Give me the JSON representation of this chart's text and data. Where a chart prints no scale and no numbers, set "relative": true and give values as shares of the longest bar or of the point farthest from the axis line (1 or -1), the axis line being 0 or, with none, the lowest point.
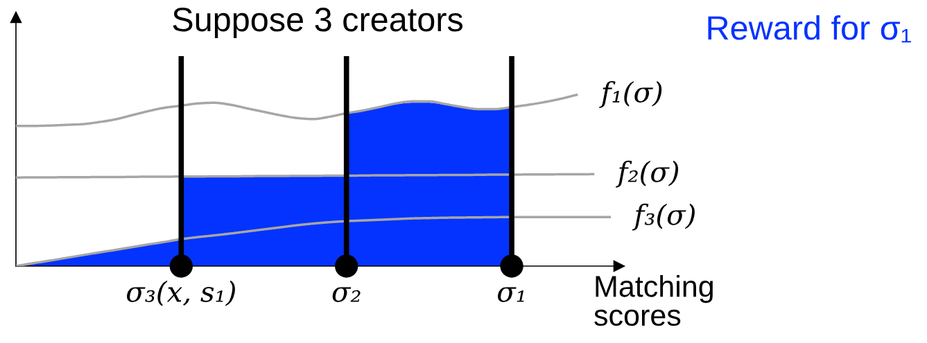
{
  "chart_data": {
    "type": "line",
    "title": "Suppose 3 creators",
    "xlabel": "Matching\nscores",
    "relative": true,
    "legend": "top right",
    "categories": [
      null,
      null,
      null,
      null,
      null,
      null,
      null,
      null,
      null,
      null,
      "σ₃(x, s₁)",
      null,
      null,
      null,
      null,
      null,
      null,
      null,
      null,
      null,
      "σ₂",
      null,
      null,
      null,
      null,
      null,
      null,
      null,
      null,
      null,
      "σ₁",
      null,
      null,
      null,
      null,
      null,
      null
    ],
    "series": [
      {
        "name": "Reward for σ₁",
        "type": "area",
        "color": "#0433ff",
        "values": [
          0,
          0.016,
          0.031,
          0.047,
          0.063,
          0.079,
          0.094,
          0.11,
          0.126,
          0.141,
          0.157,
          null,
          null,
          null,
          null,
          null,
          null,
          null,
          null,
          null,
          null,
          null,
          null,
          null,
          null,
          null,
          null,
          null,
          null,
          null,
          null,
          null,
          null,
          null,
          null,
          null,
          null
        ]
      },
      {
        "type": "area",
        "color": "#0433ff",
        "values": [
          null,
          null,
          null,
          null,
          null,
          null,
          null,
          null,
          null,
          null,
          0.522,
          0.522,
          0.523,
          0.523,
          0.524,
          0.525,
          0.525,
          0.526,
          0.526,
          0.527,
          0.527,
          null,
          null,
          null,
          null,
          null,
          null,
          null,
          null,
          null,
          null,
          null,
          null,
          null,
          null,
          null,
          null
        ]
      },
      {
        "type": "area",
        "color": "#0433ff",
        "values": [
          null,
          null,
          null,
          null,
          null,
          null,
          null,
          null,
          null,
          null,
          null,
          null,
          null,
          null,
          null,
          null,
          null,
          null,
          null,
          null,
          0.891,
          0.907,
          0.927,
          0.944,
          0.952,
          0.952,
          0.94,
          0.923,
          0.911,
          0.911,
          0.923,
          null,
          null,
          null,
          null,
          null,
          null
        ]
      },
      {
        "name": "f₁(σ)",
        "color": "#a6a6a6",
        "values": [
          0.817,
          0.817,
          0.819,
          0.823,
          0.827,
          0.839,
          0.855,
          0.879,
          0.903,
          0.923,
          0.935,
          0.948,
          0.952,
          0.94,
          0.919,
          0.899,
          0.879,
          0.863,
          0.857,
          0.871,
          0.891,
          0.907,
          0.927,
          0.948,
          0.96,
          0.96,
          0.944,
          0.927,
          0.915,
          0.915,
          0.927,
          0.94,
          0.956,
          0.976,
          1.0,
          null,
          null
        ]
      },
      {
        "name": "f₂(σ)",
        "color": "#a6a6a6",
        "values": [
          0.516,
          0.517,
          0.517,
          0.518,
          0.518,
          0.519,
          0.519,
          0.52,
          0.521,
          0.521,
          0.522,
          0.522,
          0.523,
          0.523,
          0.524,
          0.525,
          0.525,
          0.526,
          0.526,
          0.527,
          0.527,
          0.528,
          0.529,
          0.529,
          0.53,
          0.53,
          0.531,
          0.531,
          0.532,
          0.533,
          0.533,
          0.534,
          0.534,
          0.535,
          0.535,
          0.536,
          null
        ]
      },
      {
        "name": "f₃(σ)",
        "color": "#a6a6a6",
        "values": [
          0,
          0.016,
          0.031,
          0.047,
          0.063,
          0.079,
          0.094,
          0.11,
          0.126,
          0.141,
          0.157,
          0.169,
          0.179,
          0.19,
          0.202,
          0.214,
          0.226,
          0.238,
          0.248,
          0.256,
          0.262,
          0.266,
          0.27,
          0.274,
          0.278,
          0.28,
          0.282,
          0.283,
          0.284,
          0.285,
          0.286,
          0.286,
          0.286,
          0.286,
          0.286,
          0.286,
          0.286
        ]
      },
      {
        "type": "scatter",
        "color": "#000000",
        "marker": "circle",
        "x": [
          "σ₃(x, s₁)",
          "σ₂",
          "σ₁"
        ],
        "values": [
          0,
          0,
          0
        ]
      }
    ],
    "ref_lines": [
      {
        "axis": "x",
        "value": "σ₃(x, s₁)",
        "color": "#000000"
      },
      {
        "axis": "x",
        "value": "σ₂",
        "color": "#000000"
      },
      {
        "axis": "x",
        "value": "σ₁",
        "color": "#000000"
      }
    ]
  }
}
